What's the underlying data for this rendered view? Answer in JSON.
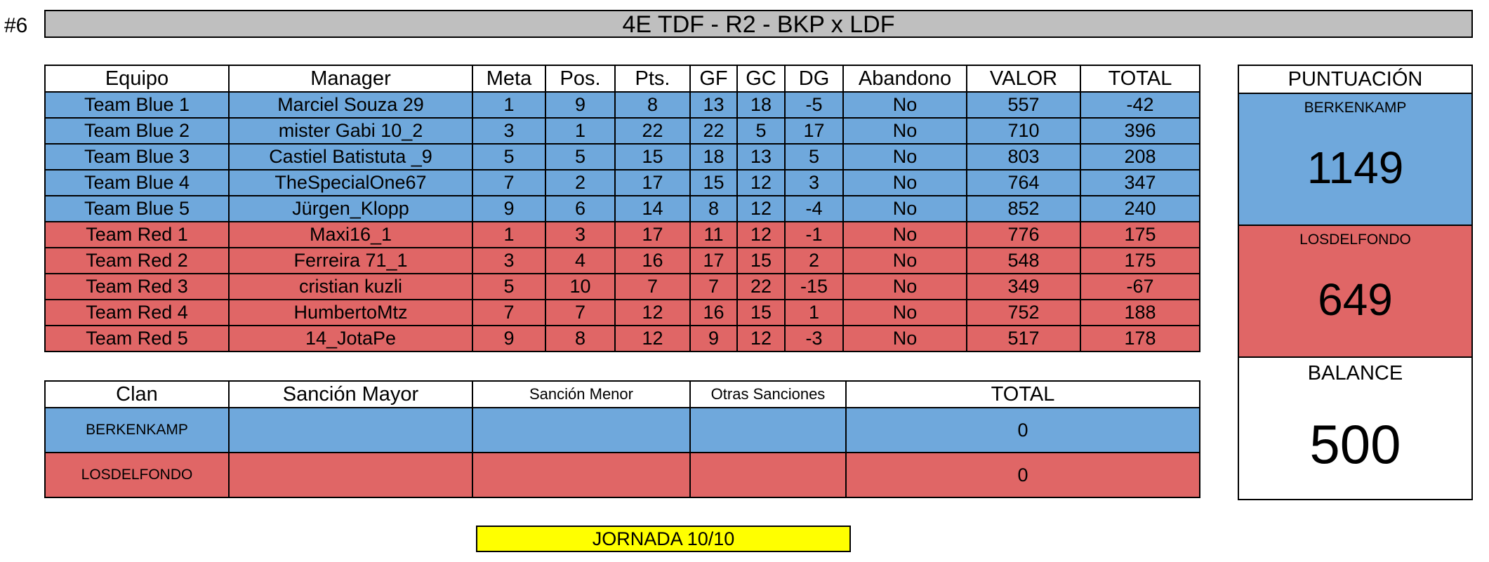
{
  "sheet_number": "#6",
  "title": "4E TDF - R2 - BKP x LDF",
  "main_table": {
    "headers": [
      "Equipo",
      "Manager",
      "Meta",
      "Pos.",
      "Pts.",
      "GF",
      "GC",
      "DG",
      "Abandono",
      "VALOR",
      "TOTAL"
    ],
    "rows": [
      {
        "team": "Team Blue 1",
        "manager": "Marciel Souza 29",
        "meta": "1",
        "pos": "9",
        "pts": "8",
        "gf": "13",
        "gc": "18",
        "dg": "-5",
        "abandono": "No",
        "valor": "557",
        "total": "-42",
        "color": "#6fa8dc"
      },
      {
        "team": "Team Blue 2",
        "manager": "mister Gabi 10_2",
        "meta": "3",
        "pos": "1",
        "pts": "22",
        "gf": "22",
        "gc": "5",
        "dg": "17",
        "abandono": "No",
        "valor": "710",
        "total": "396",
        "color": "#6fa8dc"
      },
      {
        "team": "Team Blue 3",
        "manager": "Castiel Batistuta _9",
        "meta": "5",
        "pos": "5",
        "pts": "15",
        "gf": "18",
        "gc": "13",
        "dg": "5",
        "abandono": "No",
        "valor": "803",
        "total": "208",
        "color": "#6fa8dc"
      },
      {
        "team": "Team Blue 4",
        "manager": "TheSpecialOne67",
        "meta": "7",
        "pos": "2",
        "pts": "17",
        "gf": "15",
        "gc": "12",
        "dg": "3",
        "abandono": "No",
        "valor": "764",
        "total": "347",
        "color": "#6fa8dc"
      },
      {
        "team": "Team Blue 5",
        "manager": "Jürgen_Klopp",
        "meta": "9",
        "pos": "6",
        "pts": "14",
        "gf": "8",
        "gc": "12",
        "dg": "-4",
        "abandono": "No",
        "valor": "852",
        "total": "240",
        "color": "#6fa8dc"
      },
      {
        "team": "Team Red 1",
        "manager": "Maxi16_1",
        "meta": "1",
        "pos": "3",
        "pts": "17",
        "gf": "11",
        "gc": "12",
        "dg": "-1",
        "abandono": "No",
        "valor": "776",
        "total": "175",
        "color": "#e06666"
      },
      {
        "team": "Team Red 2",
        "manager": "Ferreira 71_1",
        "meta": "3",
        "pos": "4",
        "pts": "16",
        "gf": "17",
        "gc": "15",
        "dg": "2",
        "abandono": "No",
        "valor": "548",
        "total": "175",
        "color": "#e06666"
      },
      {
        "team": "Team Red 3",
        "manager": "cristian kuzli",
        "meta": "5",
        "pos": "10",
        "pts": "7",
        "gf": "7",
        "gc": "22",
        "dg": "-15",
        "abandono": "No",
        "valor": "349",
        "total": "-67",
        "color": "#e06666"
      },
      {
        "team": "Team Red 4",
        "manager": "HumbertoMtz",
        "meta": "7",
        "pos": "7",
        "pts": "12",
        "gf": "16",
        "gc": "15",
        "dg": "1",
        "abandono": "No",
        "valor": "752",
        "total": "188",
        "color": "#e06666"
      },
      {
        "team": "Team Red 5",
        "manager": "14_JotaPe",
        "meta": "9",
        "pos": "8",
        "pts": "12",
        "gf": "9",
        "gc": "12",
        "dg": "-3",
        "abandono": "No",
        "valor": "517",
        "total": "178",
        "color": "#e06666"
      }
    ]
  },
  "sanctions_table": {
    "headers": [
      "Clan",
      "Sanción Mayor",
      "Sanción Menor",
      "Otras Sanciones",
      "TOTAL"
    ],
    "rows": [
      {
        "clan": "BERKENKAMP",
        "mayor": "",
        "menor": "",
        "otras": "",
        "total": "0",
        "color": "#6fa8dc"
      },
      {
        "clan": "LOSDELFONDO",
        "mayor": "",
        "menor": "",
        "otras": "",
        "total": "0",
        "color": "#e06666"
      }
    ]
  },
  "score_panel": {
    "header": "PUNTUACIÓN",
    "clan1_name": "BERKENKAMP",
    "clan1_score": "1149",
    "clan1_color": "#6fa8dc",
    "clan2_name": "LOSDELFONDO",
    "clan2_score": "649",
    "clan2_color": "#e06666",
    "balance_label": "BALANCE",
    "balance_value": "500"
  },
  "jornada": "JORNADA 10/10"
}
